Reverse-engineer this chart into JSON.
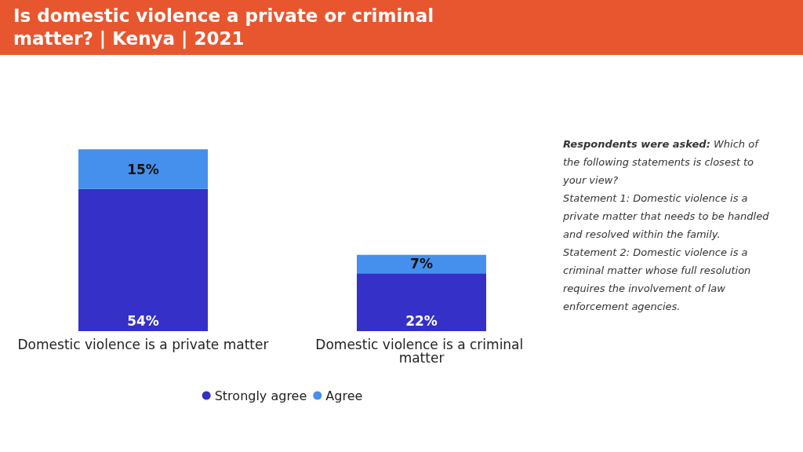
{
  "chart_data": {
    "type": "bar",
    "title": "Is domestic violence a private or criminal matter? | Kenya | 2021",
    "categories": [
      "Domestic violence is a private matter",
      "Domestic violence is a criminal matter"
    ],
    "stacked": true,
    "legend": "bottom",
    "series": [
      {
        "name": "Strongly agree",
        "color": "#3430c8",
        "values": [
          54,
          22
        ],
        "value_labels": [
          "54%",
          "22%"
        ]
      },
      {
        "name": "Agree",
        "color": "#4590ec",
        "values": [
          15,
          7
        ],
        "value_labels": [
          "15%",
          "7%"
        ]
      }
    ],
    "annotations": [
      "Respondents were asked: Which of the following statements is closest to your view?",
      "Statement 1: Domestic violence is a private matter that needs to be handled and resolved within the family.",
      "Statement 2: Domestic violence is a criminal matter whose full resolution requires the involvement of law enforcement agencies."
    ]
  }
}
